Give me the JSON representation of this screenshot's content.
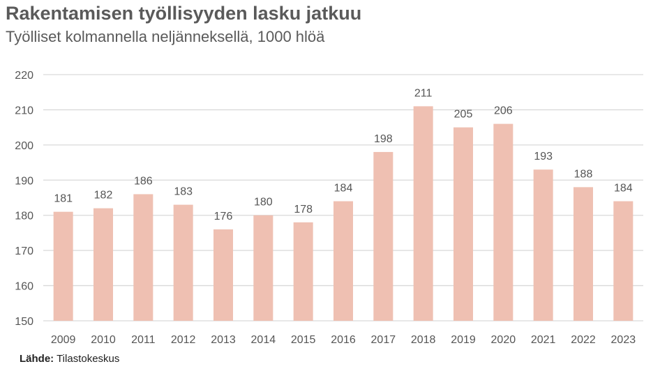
{
  "title": "Rakentamisen työllisyyden lasku jatkuu",
  "subtitle": "Työlliset kolmannella neljänneksellä, 1000 hlöä",
  "source": {
    "label": "Lähde:",
    "text": "Tilastokeskus"
  },
  "colors": {
    "bar": "#efc0b2",
    "grid": "#d9d9d9",
    "text": "#555555"
  },
  "chart_data": {
    "type": "bar",
    "title": "Rakentamisen työllisyyden lasku jatkuu",
    "subtitle": "Työlliset kolmannella neljänneksellä, 1000 hlöä",
    "categories": [
      "2009",
      "2010",
      "2011",
      "2012",
      "2013",
      "2014",
      "2015",
      "2016",
      "2017",
      "2018",
      "2019",
      "2020",
      "2021",
      "2022",
      "2023"
    ],
    "values": [
      181,
      182,
      186,
      183,
      176,
      180,
      178,
      184,
      198,
      211,
      205,
      206,
      193,
      188,
      184
    ],
    "ylim": [
      150,
      220
    ],
    "yticks": [
      150,
      160,
      170,
      180,
      190,
      200,
      210,
      220
    ],
    "grid": true,
    "data_labels": true
  }
}
